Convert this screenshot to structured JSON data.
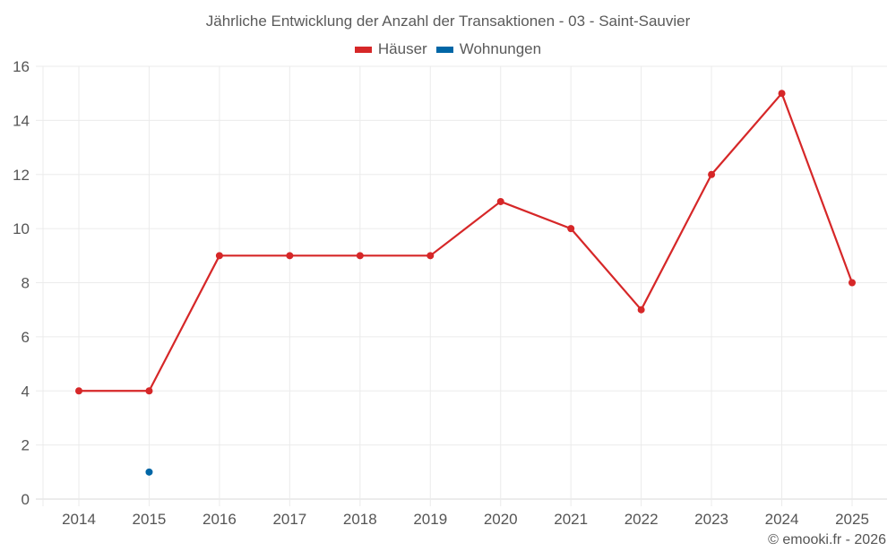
{
  "title": "Jährliche Entwicklung der Anzahl der Transaktionen - 03 - Saint-Sauvier",
  "legend": [
    {
      "label": "Häuser",
      "color": "#d62728"
    },
    {
      "label": "Wohnungen",
      "color": "#0066a6"
    }
  ],
  "credit": "© emooki.fr - 2026",
  "chart_data": {
    "type": "line",
    "title": "Jährliche Entwicklung der Anzahl der Transaktionen - 03 - Saint-Sauvier",
    "xlabel": "",
    "ylabel": "",
    "categories": [
      "2014",
      "2015",
      "2016",
      "2017",
      "2018",
      "2019",
      "2020",
      "2021",
      "2022",
      "2023",
      "2024",
      "2025"
    ],
    "series": [
      {
        "name": "Häuser",
        "color": "#d62728",
        "values": [
          4,
          4,
          9,
          9,
          9,
          9,
          11,
          10,
          7,
          12,
          15,
          8
        ]
      },
      {
        "name": "Wohnungen",
        "color": "#0066a6",
        "values": [
          null,
          1,
          null,
          null,
          null,
          null,
          null,
          null,
          null,
          null,
          null,
          null
        ]
      }
    ],
    "yticks": [
      0,
      2,
      4,
      6,
      8,
      10,
      12,
      14,
      16
    ],
    "ylim": [
      0,
      16
    ],
    "grid": true,
    "legend_position": "top"
  }
}
